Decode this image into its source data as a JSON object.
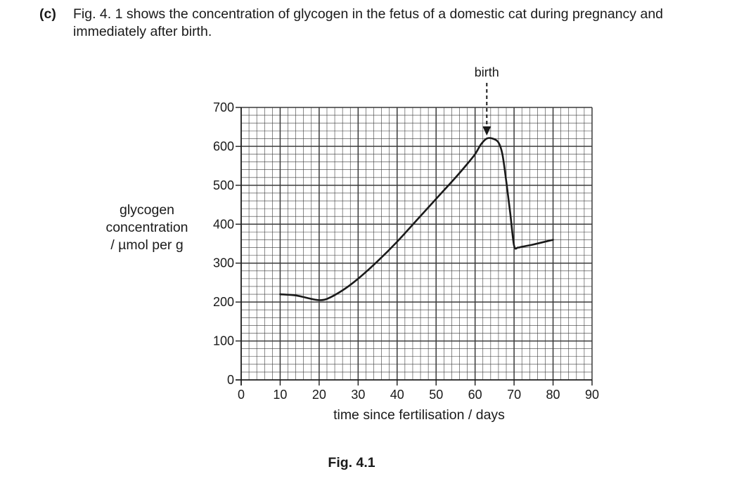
{
  "question": {
    "part": "(c)",
    "text": "Fig. 4. 1 shows the concentration of glycogen in the fetus of a domestic cat during pregnancy and immediately after birth."
  },
  "figure_caption": "Fig. 4.1",
  "chart_data": {
    "type": "line",
    "title": "",
    "xlabel": "time since fertilisation / days",
    "ylabel_lines": [
      "glycogen",
      "concentration",
      "/ µmol per g"
    ],
    "xlim": [
      0,
      90
    ],
    "ylim": [
      0,
      700
    ],
    "x_ticks": [
      0,
      10,
      20,
      30,
      40,
      50,
      60,
      70,
      80,
      90
    ],
    "y_ticks": [
      0,
      100,
      200,
      300,
      400,
      500,
      600,
      700
    ],
    "grid": true,
    "annotation": {
      "text": "birth",
      "x": 63
    },
    "series": [
      {
        "x": [
          10,
          14,
          18,
          20,
          22,
          26,
          30,
          35,
          40,
          45,
          50,
          55,
          58,
          60,
          61.5,
          63,
          64.5,
          66,
          67,
          68,
          69,
          70,
          71,
          72,
          75,
          80
        ],
        "y": [
          220,
          217,
          208,
          205,
          208,
          230,
          260,
          305,
          355,
          410,
          465,
          520,
          555,
          580,
          605,
          620,
          620,
          610,
          580,
          510,
          430,
          345,
          340,
          342,
          348,
          360
        ]
      }
    ]
  }
}
